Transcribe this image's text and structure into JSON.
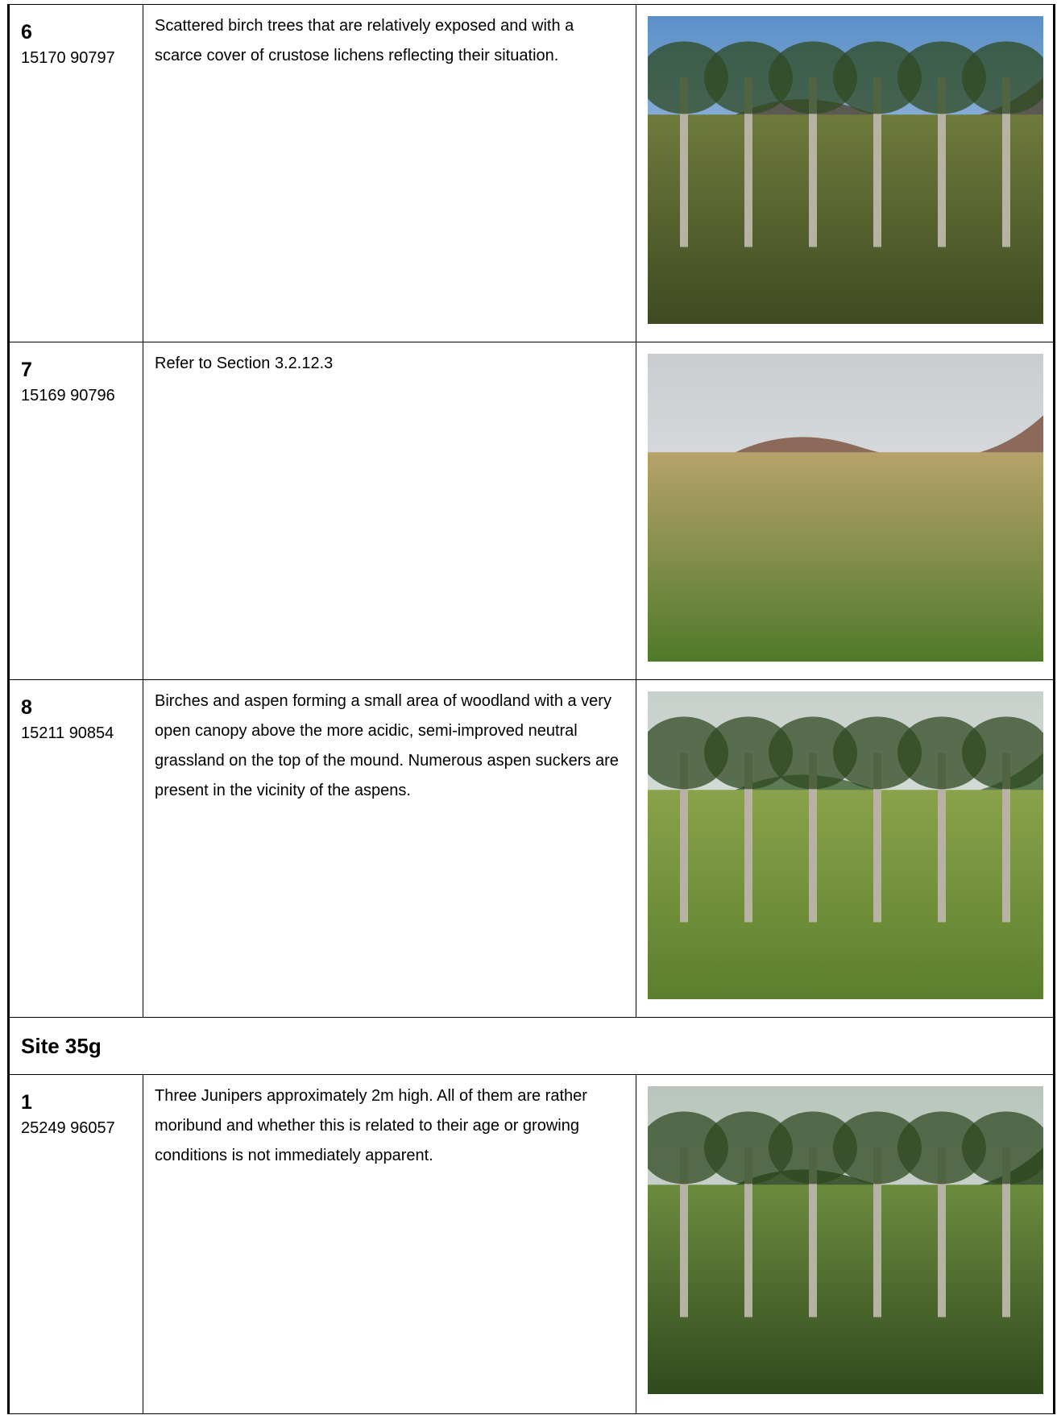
{
  "groups": [
    {
      "rows": [
        {
          "number": "6",
          "grid_ref": "15170 90797",
          "description": "Scattered birch trees that are relatively exposed and with a scarce cover of crustose lichens reflecting their situation."
        },
        {
          "number": "7",
          "grid_ref": "15169 90796",
          "description": "Refer to Section 3.2.12.3"
        },
        {
          "number": "8",
          "grid_ref": "15211 90854",
          "description": "Birches and aspen forming a small area of woodland with a very open canopy above the more acidic, semi-improved neutral grassland on the top of the mound.  Numerous aspen suckers are present in the vicinity of the aspens."
        }
      ]
    },
    {
      "heading": "Site 35g",
      "rows": [
        {
          "number": "1",
          "grid_ref": "25249 96057",
          "description": "Three Junipers approximately 2m high.  All of them are rather moribund and whether this is related to their age or growing conditions is not immediately apparent."
        }
      ]
    }
  ]
}
